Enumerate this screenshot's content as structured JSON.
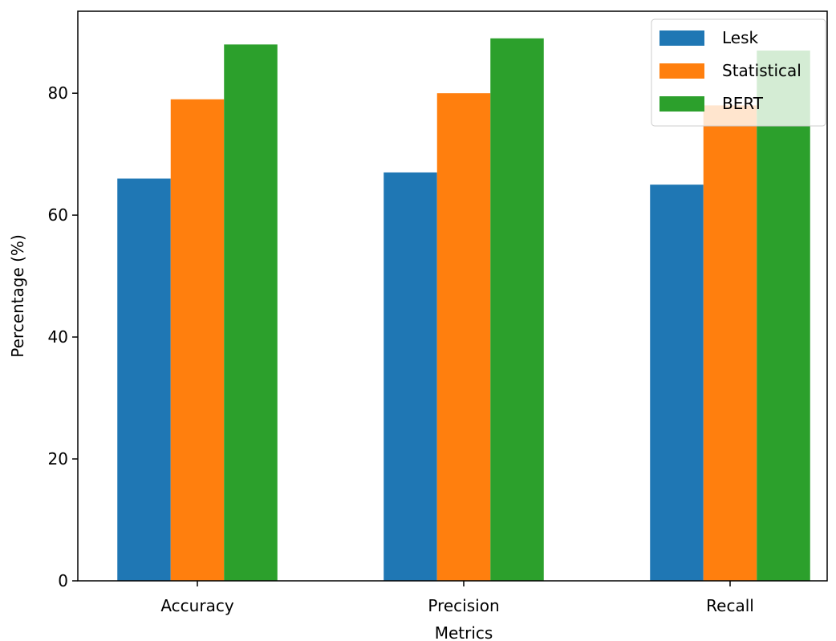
{
  "chart_data": {
    "type": "bar",
    "title": "",
    "xlabel": "Metrics",
    "ylabel": "Percentage (%)",
    "categories": [
      "Accuracy",
      "Precision",
      "Recall"
    ],
    "series": [
      {
        "name": "Lesk",
        "values": [
          66,
          67,
          65
        ],
        "color": "#1f77b4"
      },
      {
        "name": "Statistical",
        "values": [
          79,
          80,
          78
        ],
        "color": "#ff7f0e"
      },
      {
        "name": "BERT",
        "values": [
          88,
          89,
          87
        ],
        "color": "#2ca02c"
      }
    ],
    "ylim": [
      0,
      93.45
    ],
    "yticks": [
      0,
      20,
      40,
      60,
      80
    ],
    "grid": false,
    "legend_position": "top-right"
  }
}
